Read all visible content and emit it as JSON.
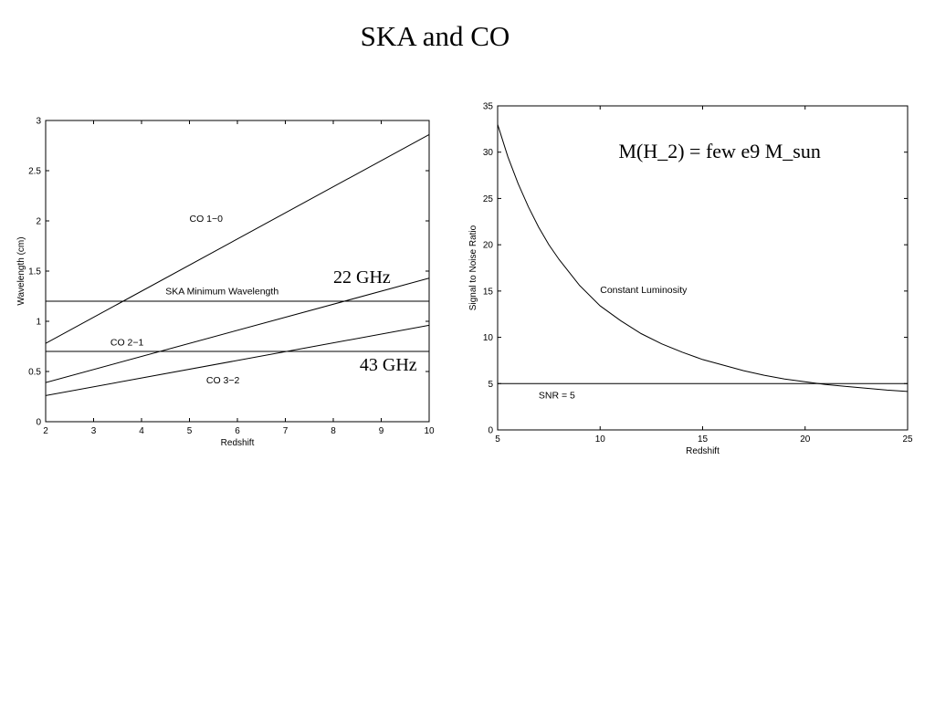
{
  "slide": {
    "title": "SKA and CO"
  },
  "chart_data": [
    {
      "type": "line",
      "title": "",
      "xlabel": "Redshift",
      "ylabel": "Wavelength (cm)",
      "xlim": [
        2,
        10
      ],
      "ylim": [
        0,
        3
      ],
      "xticks": [
        2,
        3,
        4,
        5,
        6,
        7,
        8,
        9,
        10
      ],
      "yticks": [
        0,
        0.5,
        1,
        1.5,
        2,
        2.5,
        3
      ],
      "ytick_labels": [
        "0",
        "0.5",
        "1",
        "1.5",
        "2",
        "2.5",
        "3"
      ],
      "grid": false,
      "series": [
        {
          "name": "CO 1−0",
          "x": [
            2,
            10
          ],
          "y": [
            0.78,
            2.86
          ],
          "kind": "line"
        },
        {
          "name": "CO 2−1",
          "x": [
            2,
            10
          ],
          "y": [
            0.39,
            1.43
          ],
          "kind": "line"
        },
        {
          "name": "CO 3−2",
          "x": [
            2,
            10
          ],
          "y": [
            0.26,
            0.96
          ],
          "kind": "line"
        },
        {
          "name": "SKA Minimum Wavelength",
          "x": [
            2,
            10
          ],
          "y": [
            1.2,
            1.2
          ],
          "kind": "hline"
        },
        {
          "name": "",
          "x": [
            2,
            10
          ],
          "y": [
            0.7,
            0.7
          ],
          "kind": "hline"
        }
      ],
      "annotations": [
        {
          "text": "CO 1−0",
          "x": 5.0,
          "y": 1.99,
          "style": "small"
        },
        {
          "text": "SKA Minimum Wavelength",
          "x": 4.5,
          "y": 1.27,
          "style": "small"
        },
        {
          "text": "CO 2−1",
          "x": 3.35,
          "y": 0.76,
          "style": "small"
        },
        {
          "text": "CO 3−2",
          "x": 5.35,
          "y": 0.38,
          "style": "small"
        },
        {
          "text": "22 GHz",
          "x": 8.0,
          "y": 1.38,
          "style": "serif"
        },
        {
          "text": "43 GHz",
          "x": 8.55,
          "y": 0.51,
          "style": "serif"
        }
      ]
    },
    {
      "type": "line",
      "title": "",
      "xlabel": "Redshift",
      "ylabel": "Signal to Noise Ratio",
      "xlim": [
        5,
        25
      ],
      "ylim": [
        0,
        35
      ],
      "xticks": [
        5,
        10,
        15,
        20,
        25
      ],
      "yticks": [
        0,
        5,
        10,
        15,
        20,
        25,
        30,
        35
      ],
      "ytick_labels": [
        "0",
        "5",
        "10",
        "15",
        "20",
        "25",
        "30",
        "35"
      ],
      "grid": false,
      "series": [
        {
          "name": "Constant Luminosity",
          "x": [
            5,
            5.5,
            6,
            6.5,
            7,
            7.5,
            8,
            9,
            10,
            11,
            12,
            13,
            14,
            15,
            16,
            17,
            18,
            19,
            20,
            21,
            22,
            23,
            24,
            25
          ],
          "y": [
            33.0,
            29.5,
            26.6,
            24.1,
            21.9,
            20.0,
            18.4,
            15.6,
            13.4,
            11.8,
            10.4,
            9.3,
            8.4,
            7.6,
            7.0,
            6.4,
            5.9,
            5.5,
            5.2,
            4.9,
            4.7,
            4.5,
            4.3,
            4.15
          ],
          "kind": "line"
        },
        {
          "name": "SNR = 5",
          "x": [
            5,
            25
          ],
          "y": [
            5,
            5
          ],
          "kind": "hline"
        }
      ],
      "annotations": [
        {
          "text": "Constant Luminosity",
          "x": 10.0,
          "y": 14.8,
          "style": "small"
        },
        {
          "text": "SNR = 5",
          "x": 7.0,
          "y": 3.4,
          "style": "small"
        },
        {
          "text": "M(H_2) = few e9 M_sun",
          "x": 10.9,
          "y": 29.4,
          "style": "serif-large"
        }
      ]
    }
  ]
}
